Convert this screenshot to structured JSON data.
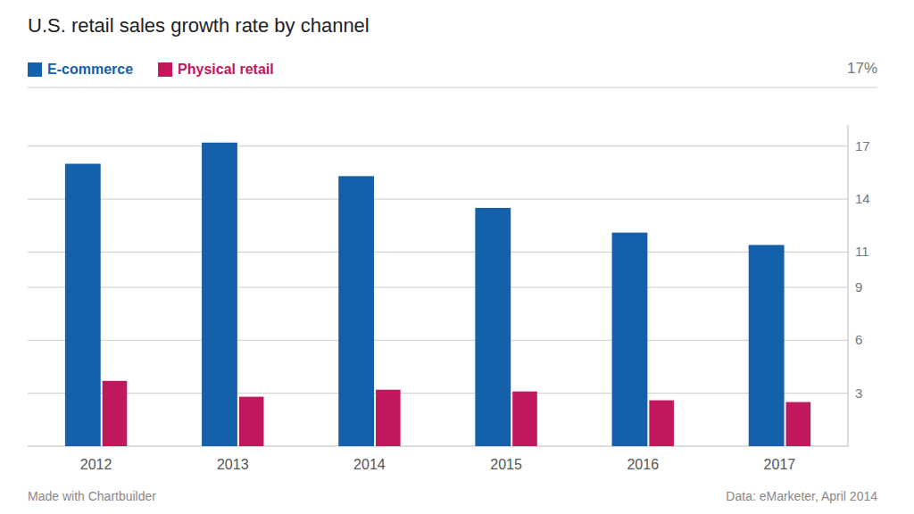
{
  "chart_data": {
    "type": "bar",
    "title": "U.S. retail sales growth rate by channel",
    "categories": [
      "2012",
      "2013",
      "2014",
      "2015",
      "2016",
      "2017"
    ],
    "series": [
      {
        "name": "E-commerce",
        "color": "#1460AA",
        "values": [
          16.0,
          17.2,
          15.3,
          13.5,
          12.1,
          11.4
        ]
      },
      {
        "name": "Physical retail",
        "color": "#C0175D",
        "values": [
          3.7,
          2.8,
          3.2,
          3.1,
          2.6,
          2.5
        ]
      }
    ],
    "ylim": [
      0,
      18.2
    ],
    "yticks": [
      3,
      6,
      9,
      11,
      14,
      17
    ],
    "grid": true,
    "legend": "top-left",
    "annotations": [
      "17%",
      "Made with Chartbuilder",
      "Data: eMarketer, April 2014"
    ]
  }
}
